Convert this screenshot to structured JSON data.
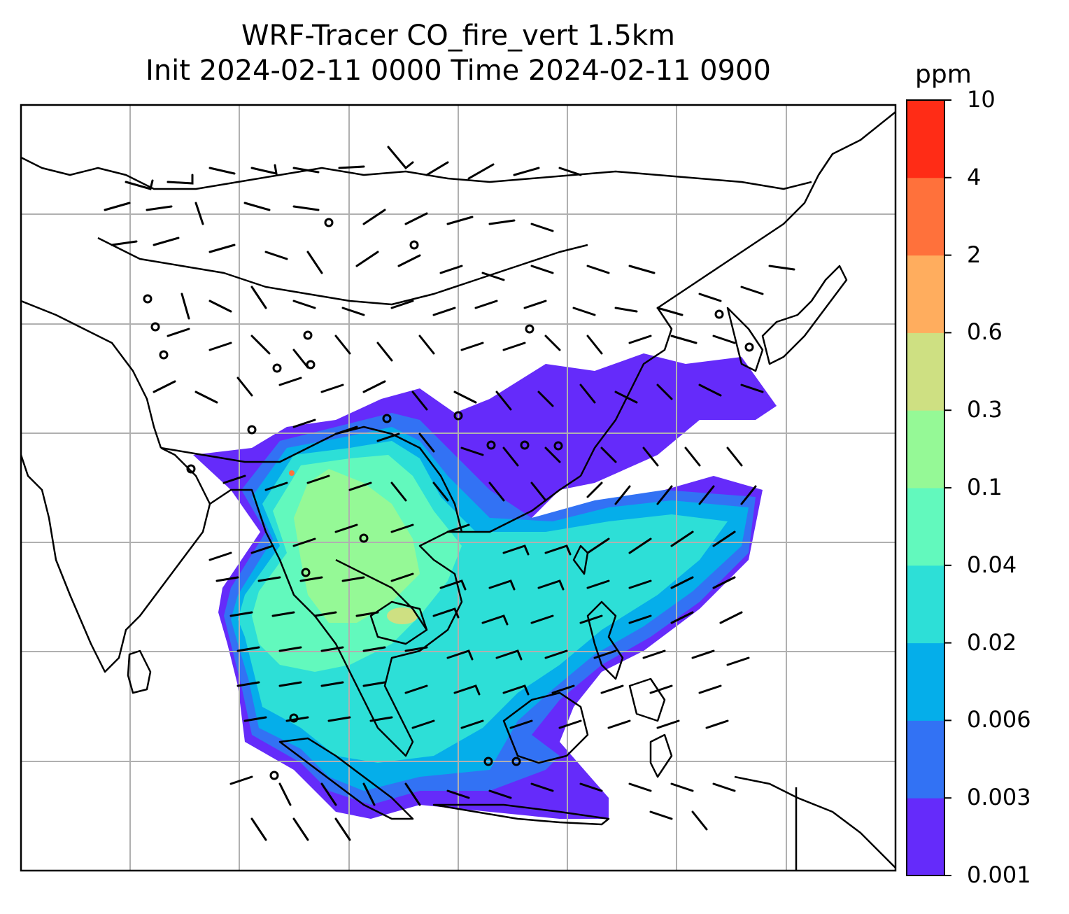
{
  "title": {
    "line1": "WRF-Tracer CO_fire_vert 1.5km",
    "line2": "Init 2024-02-11 0000 Time 2024-02-11 0900"
  },
  "colorbar": {
    "units": "ppm",
    "ticks": [
      "0.001",
      "0.003",
      "0.006",
      "0.02",
      "0.04",
      "0.1",
      "0.3",
      "0.6",
      "2",
      "4",
      "10"
    ],
    "colors": [
      "#652bfa",
      "#3272f4",
      "#05aeea",
      "#2ddfd7",
      "#62f9bd",
      "#95f996",
      "#cee082",
      "#ffad5e",
      "#ff713b",
      "#ff2c16"
    ]
  },
  "map": {
    "variable": "CO_fire_vert",
    "level": "1.5km",
    "wind_barbs": true,
    "coastlines": true,
    "gridlines": true
  }
}
